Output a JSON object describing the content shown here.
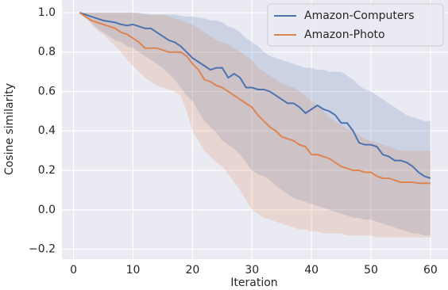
{
  "chart_data": {
    "type": "line",
    "xlabel": "Iteration",
    "ylabel": "Cosine similarity",
    "x": [
      1,
      2,
      3,
      4,
      5,
      6,
      7,
      8,
      9,
      10,
      11,
      12,
      13,
      14,
      15,
      16,
      17,
      18,
      19,
      20,
      21,
      22,
      23,
      24,
      25,
      26,
      27,
      28,
      29,
      30,
      31,
      32,
      33,
      34,
      35,
      36,
      37,
      38,
      39,
      40,
      41,
      42,
      43,
      44,
      45,
      46,
      47,
      48,
      49,
      50,
      51,
      52,
      53,
      54,
      55,
      56,
      57,
      58,
      59,
      60
    ],
    "series": [
      {
        "name": "Amazon-Computers",
        "color": "#4c72b0",
        "values": [
          1.0,
          0.99,
          0.98,
          0.97,
          0.96,
          0.955,
          0.95,
          0.94,
          0.935,
          0.94,
          0.93,
          0.92,
          0.92,
          0.9,
          0.88,
          0.86,
          0.85,
          0.83,
          0.8,
          0.77,
          0.75,
          0.73,
          0.71,
          0.72,
          0.72,
          0.67,
          0.69,
          0.67,
          0.62,
          0.62,
          0.61,
          0.61,
          0.6,
          0.58,
          0.56,
          0.54,
          0.54,
          0.52,
          0.49,
          0.51,
          0.53,
          0.51,
          0.5,
          0.48,
          0.44,
          0.44,
          0.4,
          0.34,
          0.33,
          0.33,
          0.32,
          0.28,
          0.27,
          0.25,
          0.25,
          0.24,
          0.22,
          0.19,
          0.17,
          0.16
        ],
        "upper": [
          1.0,
          1.0,
          1.0,
          1.0,
          1.0,
          1.0,
          1.0,
          1.0,
          1.0,
          1.0,
          1.0,
          0.995,
          0.99,
          0.99,
          0.99,
          0.99,
          0.99,
          0.985,
          0.98,
          0.98,
          0.975,
          0.97,
          0.96,
          0.96,
          0.95,
          0.93,
          0.92,
          0.9,
          0.87,
          0.85,
          0.83,
          0.8,
          0.78,
          0.77,
          0.76,
          0.75,
          0.74,
          0.73,
          0.72,
          0.72,
          0.71,
          0.71,
          0.7,
          0.7,
          0.7,
          0.68,
          0.66,
          0.63,
          0.61,
          0.6,
          0.58,
          0.56,
          0.54,
          0.52,
          0.5,
          0.48,
          0.47,
          0.46,
          0.45,
          0.45
        ],
        "lower": [
          1.0,
          0.98,
          0.95,
          0.92,
          0.9,
          0.88,
          0.86,
          0.85,
          0.83,
          0.82,
          0.8,
          0.78,
          0.76,
          0.74,
          0.72,
          0.69,
          0.66,
          0.62,
          0.58,
          0.55,
          0.5,
          0.45,
          0.42,
          0.39,
          0.35,
          0.33,
          0.31,
          0.28,
          0.24,
          0.2,
          0.18,
          0.17,
          0.15,
          0.12,
          0.1,
          0.08,
          0.06,
          0.05,
          0.04,
          0.03,
          0.02,
          0.01,
          0.0,
          -0.01,
          -0.02,
          -0.03,
          -0.04,
          -0.04,
          -0.05,
          -0.05,
          -0.06,
          -0.07,
          -0.08,
          -0.09,
          -0.1,
          -0.11,
          -0.12,
          -0.12,
          -0.13,
          -0.13
        ]
      },
      {
        "name": "Amazon-Photo",
        "color": "#dd8452",
        "values": [
          1.0,
          0.98,
          0.96,
          0.95,
          0.94,
          0.93,
          0.92,
          0.9,
          0.89,
          0.87,
          0.85,
          0.82,
          0.82,
          0.82,
          0.81,
          0.8,
          0.8,
          0.8,
          0.78,
          0.74,
          0.71,
          0.66,
          0.65,
          0.63,
          0.62,
          0.6,
          0.58,
          0.56,
          0.54,
          0.52,
          0.48,
          0.45,
          0.42,
          0.4,
          0.37,
          0.36,
          0.35,
          0.33,
          0.32,
          0.28,
          0.28,
          0.27,
          0.26,
          0.24,
          0.22,
          0.21,
          0.2,
          0.2,
          0.19,
          0.19,
          0.17,
          0.16,
          0.16,
          0.15,
          0.14,
          0.14,
          0.14,
          0.135,
          0.135,
          0.135
        ],
        "upper": [
          1.0,
          1.0,
          1.0,
          1.0,
          1.0,
          1.0,
          1.0,
          1.0,
          1.0,
          1.0,
          0.995,
          0.99,
          0.99,
          0.99,
          0.99,
          0.98,
          0.97,
          0.96,
          0.95,
          0.94,
          0.92,
          0.9,
          0.88,
          0.86,
          0.85,
          0.84,
          0.82,
          0.8,
          0.78,
          0.76,
          0.72,
          0.7,
          0.68,
          0.66,
          0.64,
          0.63,
          0.62,
          0.6,
          0.58,
          0.55,
          0.53,
          0.5,
          0.47,
          0.45,
          0.43,
          0.41,
          0.4,
          0.38,
          0.36,
          0.35,
          0.34,
          0.33,
          0.32,
          0.31,
          0.3,
          0.3,
          0.3,
          0.3,
          0.3,
          0.3
        ],
        "lower": [
          1.0,
          0.97,
          0.94,
          0.91,
          0.89,
          0.86,
          0.83,
          0.8,
          0.76,
          0.73,
          0.7,
          0.67,
          0.65,
          0.63,
          0.62,
          0.61,
          0.6,
          0.58,
          0.5,
          0.4,
          0.35,
          0.3,
          0.27,
          0.24,
          0.22,
          0.18,
          0.14,
          0.1,
          0.05,
          0.0,
          -0.02,
          -0.04,
          -0.05,
          -0.06,
          -0.07,
          -0.08,
          -0.09,
          -0.1,
          -0.1,
          -0.11,
          -0.11,
          -0.12,
          -0.12,
          -0.12,
          -0.12,
          -0.13,
          -0.13,
          -0.13,
          -0.13,
          -0.13,
          -0.14,
          -0.14,
          -0.14,
          -0.14,
          -0.14,
          -0.14,
          -0.14,
          -0.14,
          -0.14,
          -0.14
        ]
      }
    ],
    "xlim": [
      -1.95,
      62.95
    ],
    "ylim": [
      -0.25,
      1.064
    ],
    "xticks": [
      0,
      10,
      20,
      30,
      40,
      50,
      60
    ],
    "yticks": [
      {
        "value": -0.2,
        "label": "−0.2"
      },
      {
        "value": 0,
        "label": "0.0"
      },
      0.2,
      0.4,
      0.6,
      0.8,
      {
        "value": 1,
        "label": "1.0"
      }
    ],
    "grid": true,
    "legend": "upper right"
  }
}
